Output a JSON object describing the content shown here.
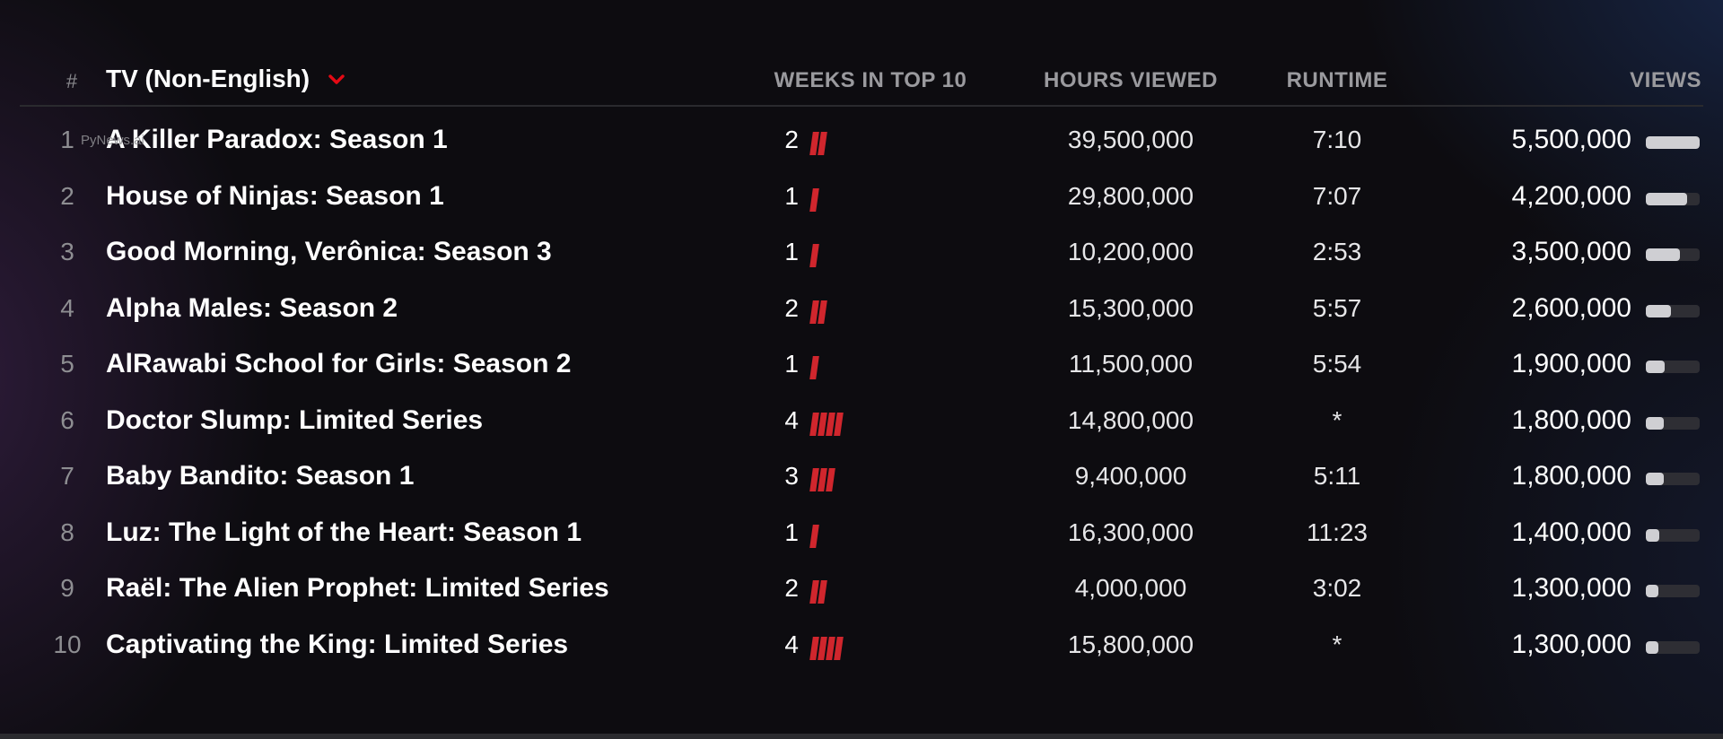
{
  "header": {
    "hash": "#",
    "category": "TV (Non-English)",
    "weeks": "WEEKS IN TOP 10",
    "hours": "HOURS VIEWED",
    "runtime": "RUNTIME",
    "views": "VIEWS"
  },
  "watermark": "PyNews.ai",
  "colors": {
    "accent": "#d0262d",
    "views_fill": "#cfcfd3",
    "views_track": "#2e2e34"
  },
  "rows": [
    {
      "rank": "1",
      "title": "A Killer Paradox: Season 1",
      "weeks": "2",
      "weeks_count": 2,
      "hours": "39,500,000",
      "runtime": "7:10",
      "views": "5,500,000",
      "views_fraction": 1.0
    },
    {
      "rank": "2",
      "title": "House of Ninjas: Season 1",
      "weeks": "1",
      "weeks_count": 1,
      "hours": "29,800,000",
      "runtime": "7:07",
      "views": "4,200,000",
      "views_fraction": 0.76
    },
    {
      "rank": "3",
      "title": "Good Morning, Verônica: Season 3",
      "weeks": "1",
      "weeks_count": 1,
      "hours": "10,200,000",
      "runtime": "2:53",
      "views": "3,500,000",
      "views_fraction": 0.64
    },
    {
      "rank": "4",
      "title": "Alpha Males: Season 2",
      "weeks": "2",
      "weeks_count": 2,
      "hours": "15,300,000",
      "runtime": "5:57",
      "views": "2,600,000",
      "views_fraction": 0.47
    },
    {
      "rank": "5",
      "title": "AlRawabi School for Girls: Season 2",
      "weeks": "1",
      "weeks_count": 1,
      "hours": "11,500,000",
      "runtime": "5:54",
      "views": "1,900,000",
      "views_fraction": 0.35
    },
    {
      "rank": "6",
      "title": "Doctor Slump: Limited Series",
      "weeks": "4",
      "weeks_count": 4,
      "hours": "14,800,000",
      "runtime": "*",
      "views": "1,800,000",
      "views_fraction": 0.33
    },
    {
      "rank": "7",
      "title": "Baby Bandito: Season 1",
      "weeks": "3",
      "weeks_count": 3,
      "hours": "9,400,000",
      "runtime": "5:11",
      "views": "1,800,000",
      "views_fraction": 0.33
    },
    {
      "rank": "8",
      "title": "Luz: The Light of the Heart: Season 1",
      "weeks": "1",
      "weeks_count": 1,
      "hours": "16,300,000",
      "runtime": "11:23",
      "views": "1,400,000",
      "views_fraction": 0.25
    },
    {
      "rank": "9",
      "title": "Raël: The Alien Prophet: Limited Series",
      "weeks": "2",
      "weeks_count": 2,
      "hours": "4,000,000",
      "runtime": "3:02",
      "views": "1,300,000",
      "views_fraction": 0.24
    },
    {
      "rank": "10",
      "title": "Captivating the King: Limited Series",
      "weeks": "4",
      "weeks_count": 4,
      "hours": "15,800,000",
      "runtime": "*",
      "views": "1,300,000",
      "views_fraction": 0.24
    }
  ]
}
